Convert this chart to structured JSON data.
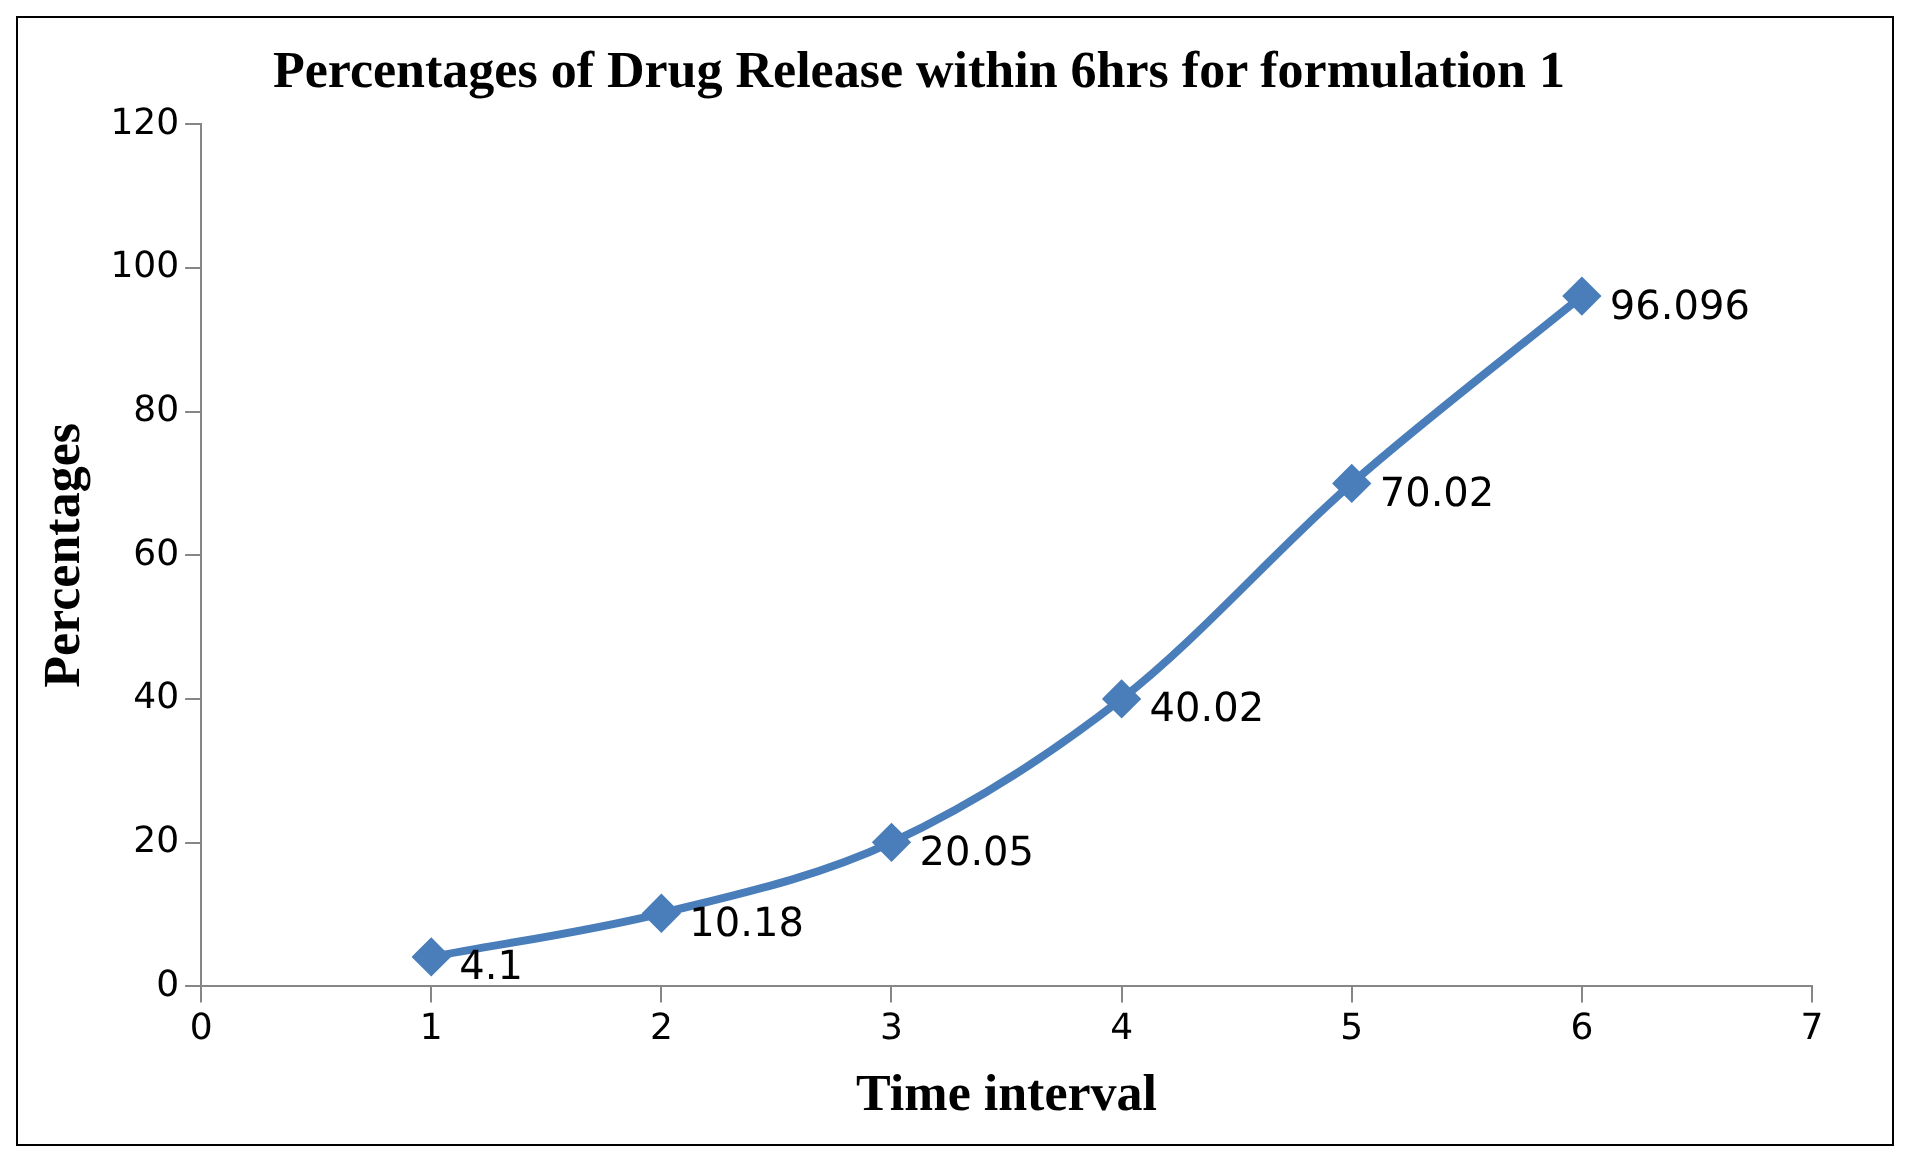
{
  "chart_data": {
    "type": "line",
    "title": "Percentages of Drug Release within 6hrs for formulation 1",
    "xlabel": "Time interval",
    "ylabel": "Percentages",
    "x": [
      1,
      2,
      3,
      4,
      5,
      6
    ],
    "series": [
      {
        "color": "#4a7ebb",
        "values": [
          4.1,
          10.18,
          20.05,
          40.02,
          70.02,
          96.096
        ]
      }
    ],
    "xlim": [
      0,
      7
    ],
    "xticks": [
      0,
      1,
      2,
      3,
      4,
      5,
      6,
      7
    ],
    "ylim": [
      0,
      120
    ],
    "yticks": [
      0,
      20,
      40,
      60,
      80,
      100,
      120
    ],
    "grid": false,
    "legend": false,
    "marker": "diamond",
    "line_style": "solid",
    "data_labels": true
  }
}
